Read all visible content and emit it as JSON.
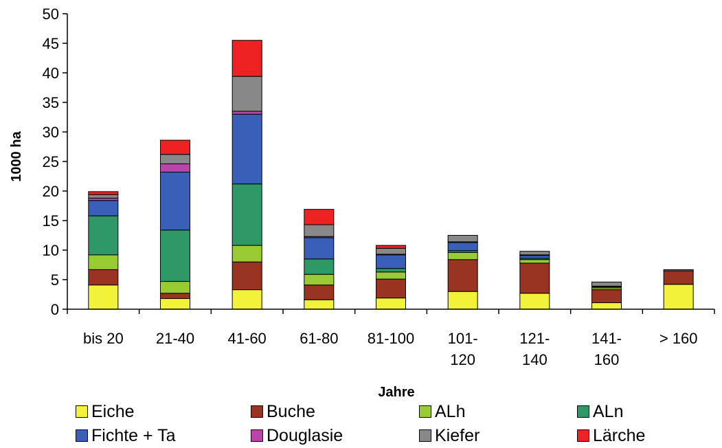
{
  "chart_data": {
    "type": "bar",
    "stacked": true,
    "categories": [
      [
        "bis 20"
      ],
      [
        "21-40"
      ],
      [
        "41-60"
      ],
      [
        "61-80"
      ],
      [
        "81-100"
      ],
      [
        "101-",
        "120"
      ],
      [
        "121-",
        "140"
      ],
      [
        "141-",
        "160"
      ],
      [
        "> 160"
      ]
    ],
    "xlabel": "Jahre",
    "ylabel": "1000 ha",
    "ylim": [
      0,
      50
    ],
    "yticks": [
      0,
      5,
      10,
      15,
      20,
      25,
      30,
      35,
      40,
      45,
      50
    ],
    "grid": false,
    "legend_position": "bottom",
    "series": [
      {
        "name": "Eiche",
        "color": "#f2f23a",
        "values": [
          4.1,
          1.8,
          3.3,
          1.6,
          1.9,
          3.0,
          2.7,
          1.1,
          4.2
        ]
      },
      {
        "name": "Buche",
        "color": "#993322",
        "values": [
          2.6,
          0.9,
          4.7,
          2.5,
          3.2,
          5.4,
          5.1,
          2.2,
          2.3
        ]
      },
      {
        "name": "ALh",
        "color": "#99cc33",
        "values": [
          2.5,
          2.0,
          2.8,
          1.8,
          1.2,
          1.2,
          0.6,
          0.3,
          0.0
        ]
      },
      {
        "name": "ALn",
        "color": "#2e9966",
        "values": [
          6.6,
          8.7,
          10.4,
          2.6,
          0.6,
          0.3,
          0.2,
          0.2,
          0.0
        ]
      },
      {
        "name": "Fichte + Ta",
        "color": "#3a5fb8",
        "values": [
          2.6,
          9.8,
          11.8,
          3.6,
          2.3,
          1.4,
          0.5,
          0.1,
          0.0
        ]
      },
      {
        "name": "Douglasie",
        "color": "#bb44aa",
        "values": [
          0.4,
          1.4,
          0.5,
          0.2,
          0.1,
          0.1,
          0.1,
          0.0,
          0.0
        ]
      },
      {
        "name": "Kiefer",
        "color": "#888888",
        "values": [
          0.6,
          1.6,
          5.9,
          2.0,
          1.0,
          1.1,
          0.6,
          0.7,
          0.2
        ]
      },
      {
        "name": "Lärche",
        "color": "#ee2222",
        "values": [
          0.5,
          2.4,
          6.1,
          2.6,
          0.5,
          0.0,
          0.0,
          0.0,
          0.0
        ]
      }
    ]
  }
}
